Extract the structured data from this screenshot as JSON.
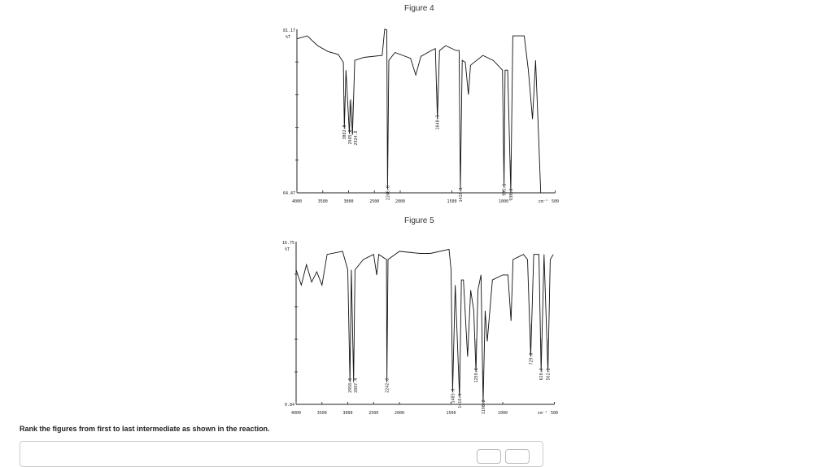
{
  "question": "Rank the figures from first to last intermediate as shown in the reaction.",
  "chart_data": [
    {
      "type": "line",
      "title": "Figure 4",
      "xlabel": "cm⁻¹",
      "ylabel": "%T",
      "y_top_label": "81.17",
      "y_bottom_label": "64.47",
      "ylim": [
        64.47,
        81.17
      ],
      "xlim": [
        4000,
        500
      ],
      "x_ticks": [
        "4000",
        "3500",
        "3000",
        "2500",
        "2000",
        "1500",
        "1000",
        "500"
      ],
      "x_tick_values": [
        4000,
        3500,
        3000,
        2500,
        2000,
        1500,
        1000,
        500
      ],
      "peaks": [
        {
          "x": 3082.8,
          "y": 71.0,
          "label": "3082.8"
        },
        {
          "x": 2985.0,
          "y": 70.5,
          "label": "2985.0"
        },
        {
          "x": 2924.2,
          "y": 70.4,
          "label": "2924.2"
        },
        {
          "x": 2246.8,
          "y": 64.8,
          "label": "2246.8"
        },
        {
          "x": 1640.3,
          "y": 72.0,
          "label": "1640.3"
        },
        {
          "x": 1418.1,
          "y": 64.6,
          "label": "1418.1"
        },
        {
          "x": 995.1,
          "y": 65.0,
          "label": "995.1"
        },
        {
          "x": 930.8,
          "y": 64.5,
          "label": "930.8"
        }
      ],
      "x": [
        4000,
        3800,
        3600,
        3400,
        3200,
        3100,
        3082,
        3050,
        2985,
        2960,
        2924,
        2880,
        2700,
        2350,
        2300,
        2260,
        2246,
        2220,
        2100,
        1900,
        1850,
        1800,
        1700,
        1660,
        1640,
        1620,
        1560,
        1460,
        1430,
        1418,
        1400,
        1370,
        1340,
        1320,
        1200,
        1100,
        1010,
        995,
        985,
        960,
        930,
        910,
        800,
        760,
        720,
        690,
        660,
        640
      ],
      "y": [
        80.2,
        80.5,
        79.5,
        78.9,
        78.6,
        77.8,
        71.0,
        77.0,
        70.5,
        74.0,
        70.4,
        78.0,
        78.3,
        78.5,
        81.17,
        81.1,
        64.8,
        78.0,
        78.8,
        78.2,
        76.5,
        78.4,
        79.0,
        79.2,
        72.0,
        79.0,
        79.5,
        79.0,
        79.0,
        64.6,
        78.0,
        77.8,
        74.5,
        77.5,
        78.5,
        78.0,
        77.0,
        65.0,
        77.0,
        77.0,
        64.5,
        80.5,
        80.5,
        77.0,
        72.0,
        78.0,
        70.0,
        64.47
      ]
    },
    {
      "type": "line",
      "title": "Figure 5",
      "xlabel": "cm⁻¹",
      "ylabel": "%T",
      "y_top_label": "16.75",
      "y_bottom_label": "0.84",
      "ylim": [
        0.84,
        16.75
      ],
      "xlim": [
        4000,
        500
      ],
      "x_ticks": [
        "4000",
        "3500",
        "3000",
        "2500",
        "2000",
        "1500",
        "1000",
        "500"
      ],
      "x_tick_values": [
        4000,
        3500,
        3000,
        2500,
        2000,
        1500,
        1000,
        500
      ],
      "peaks": [
        {
          "x": 2958.0,
          "y": 3.0,
          "label": "2958.0"
        },
        {
          "x": 2887.4,
          "y": 3.0,
          "label": "2887.4"
        },
        {
          "x": 2242.8,
          "y": 3.0,
          "label": "2242.8"
        },
        {
          "x": 1485.0,
          "y": 2.0,
          "label": "1485.0"
        },
        {
          "x": 1418.3,
          "y": 1.5,
          "label": "1418.3"
        },
        {
          "x": 1259.8,
          "y": 4.0,
          "label": "1259.8"
        },
        {
          "x": 1190.2,
          "y": 0.9,
          "label": "1190.2"
        },
        {
          "x": 729.0,
          "y": 5.5,
          "label": "729.0"
        },
        {
          "x": 628.2,
          "y": 4.0,
          "label": "628.2"
        },
        {
          "x": 562.2,
          "y": 4.0,
          "label": "562.2"
        }
      ],
      "x": [
        4000,
        3900,
        3800,
        3700,
        3600,
        3500,
        3400,
        3100,
        3000,
        2958,
        2930,
        2887,
        2860,
        2700,
        2500,
        2440,
        2400,
        2250,
        2242,
        2220,
        2000,
        1800,
        1700,
        1520,
        1500,
        1485,
        1460,
        1418,
        1400,
        1380,
        1340,
        1310,
        1280,
        1259,
        1240,
        1210,
        1190,
        1170,
        1150,
        1100,
        1000,
        950,
        920,
        900,
        800,
        760,
        729,
        700,
        650,
        628,
        600,
        562,
        540,
        510
      ],
      "y": [
        14.0,
        12.5,
        14.5,
        12.8,
        13.8,
        12.5,
        15.5,
        15.8,
        14.0,
        3.0,
        14.0,
        3.0,
        14.0,
        15.0,
        15.5,
        13.5,
        15.5,
        15.0,
        3.0,
        15.0,
        15.8,
        15.6,
        15.6,
        16.0,
        14.0,
        2.0,
        12.5,
        1.5,
        13.0,
        13.0,
        5.5,
        12.0,
        10.0,
        4.0,
        12.0,
        13.5,
        0.9,
        10.0,
        7.0,
        13.0,
        13.5,
        13.5,
        9.0,
        15.0,
        15.5,
        15.0,
        5.5,
        15.5,
        15.5,
        4.0,
        15.5,
        4.0,
        15.0,
        15.5
      ]
    }
  ]
}
